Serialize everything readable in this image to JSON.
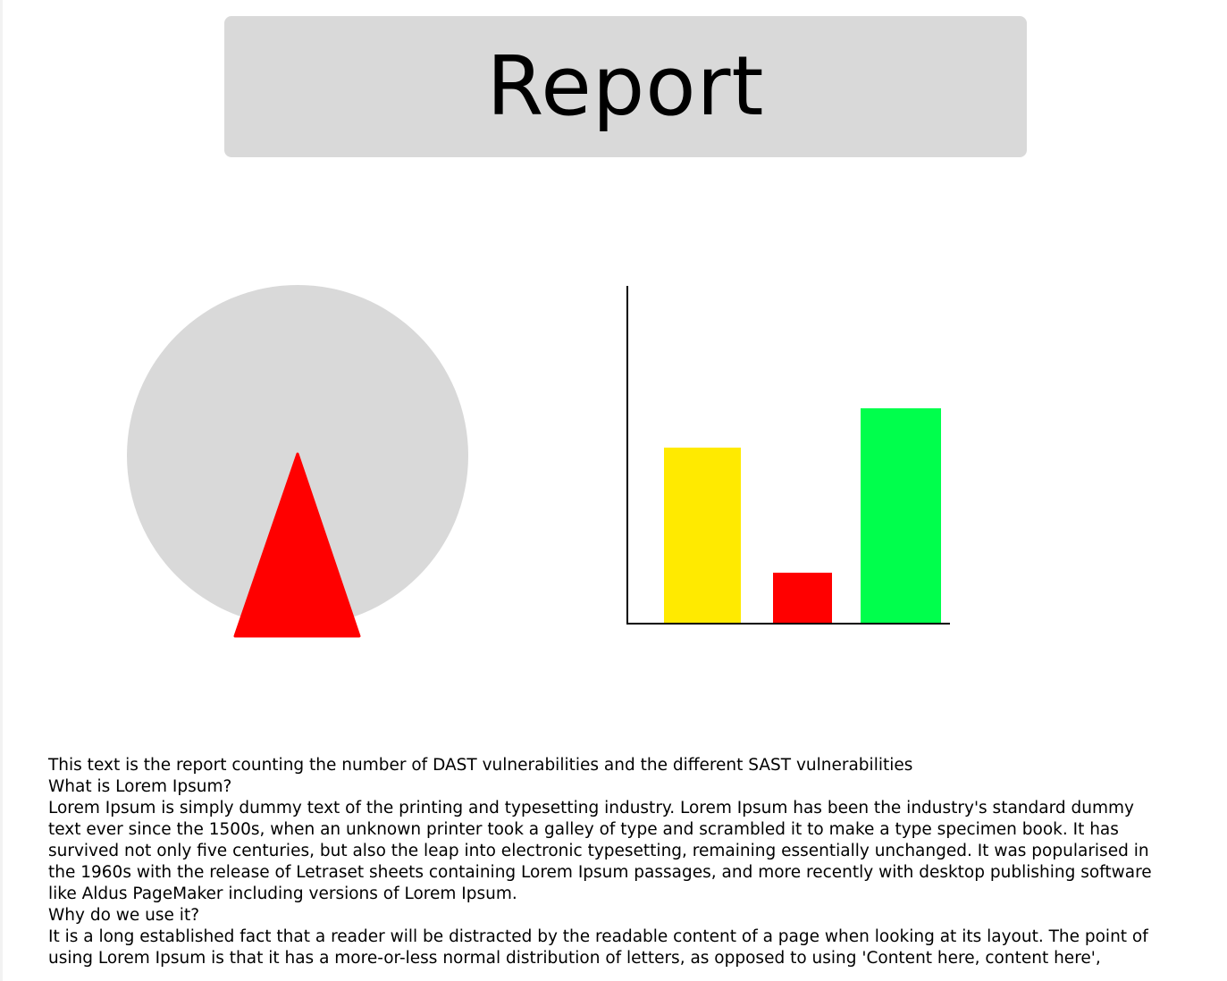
{
  "header": {
    "title": "Report",
    "background": "#d9d9d9"
  },
  "gauge": {
    "dial_color": "#d9d9d9",
    "needle_color": "#ff0000",
    "needle_icon": "triangle-needle-icon"
  },
  "chart_data": {
    "type": "bar",
    "categories": [
      "",
      "",
      ""
    ],
    "values": [
      196,
      56,
      240
    ],
    "colors": [
      "#ffea00",
      "#ff0000",
      "#00ff4c"
    ],
    "ylim": [
      0,
      378
    ],
    "title": "",
    "xlabel": "",
    "ylabel": "",
    "grid": false
  },
  "text": {
    "intro": "This text is the report counting the number of DAST vulnerabilities and the different SAST vulnerabilities",
    "q1": "What is Lorem Ipsum?",
    "p1": "Lorem Ipsum is simply dummy text of the printing and typesetting industry. Lorem Ipsum has been the industry's standard dummy text ever since the 1500s, when an unknown printer took a galley of type and scrambled it to make a type specimen book. It has survived not only five centuries, but also the leap into electronic typesetting, remaining essentially unchanged. It was popularised in the 1960s with the release of Letraset sheets containing Lorem Ipsum passages, and more recently with desktop publishing software like Aldus PageMaker including versions of Lorem Ipsum.",
    "q2": "Why do we use it?",
    "p2": "It is a long established fact that a reader will be distracted by the readable content of a page when looking at its layout. The point of using Lorem Ipsum is that it has a more-or-less normal distribution of letters, as opposed to using 'Content here, content here',"
  }
}
